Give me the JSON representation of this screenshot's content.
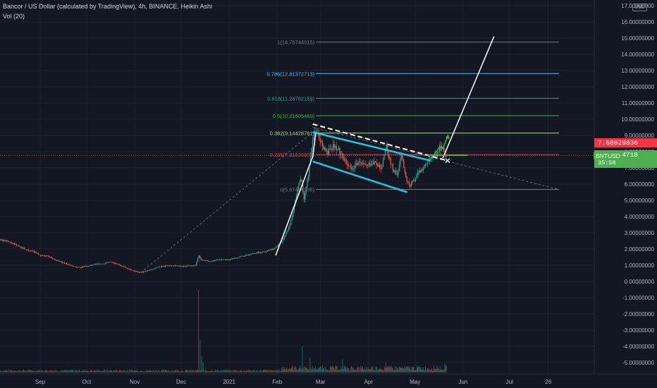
{
  "header": {
    "title": "Bancor / US Dollar (calculated by TradingView), 4h, BINANCE, Heikin Ashi",
    "indicator": "Vol (20)"
  },
  "axis": {
    "currency": "USD"
  },
  "colors": {
    "background": "#131722",
    "up": "#26a69a",
    "down": "#ef5350",
    "text": "#b2b5be",
    "price_line": "#ef5350",
    "symbol_tag": "#4caf50",
    "prev_close_tag": "#f23645"
  },
  "price_tags": {
    "prev_close": "7.88828836",
    "symbol": "BNTUSD",
    "last": "7.77294718",
    "countdown": "35:58"
  },
  "chart_data": {
    "type": "candlestick",
    "symbol": "BNTUSD",
    "timeframe": "4h",
    "chart_style": "Heikin Ashi",
    "y_unit": "USD",
    "ylim": [
      -5.7,
      17.3
    ],
    "yticks": [
      "17.00000000",
      "16.00000000",
      "15.00000000",
      "14.00000000",
      "13.00000000",
      "12.00000000",
      "11.00000000",
      "10.00000000",
      "9.00000000",
      "8.00000000",
      "7.00000000",
      "6.00000000",
      "5.00000000",
      "4.00000000",
      "3.00000000",
      "2.00000000",
      "1.00000000",
      "0.00000000",
      "-1.00000000",
      "-2.00000000",
      "-3.00000000",
      "-4.00000000",
      "-5.00000000"
    ],
    "ytick_values": [
      17,
      16,
      15,
      14,
      13,
      12,
      11,
      10,
      9,
      8,
      7,
      6,
      5,
      4,
      3,
      2,
      1,
      0,
      -1,
      -2,
      -3,
      -4,
      -5
    ],
    "xticks": [
      {
        "label": "Sep",
        "day": 10
      },
      {
        "label": "Oct",
        "day": 40
      },
      {
        "label": "Nov",
        "day": 71
      },
      {
        "label": "Dec",
        "day": 101
      },
      {
        "label": "2021",
        "day": 132
      },
      {
        "label": "Feb",
        "day": 163
      },
      {
        "label": "Mar",
        "day": 191
      },
      {
        "label": "Apr",
        "day": 222
      },
      {
        "label": "May",
        "day": 252
      },
      {
        "label": "Jun",
        "day": 283
      },
      {
        "label": "Jul",
        "day": 313
      },
      {
        "label": "26",
        "day": 338
      }
    ],
    "price_path": [
      {
        "day": -16,
        "price": 2.6
      },
      {
        "day": -10,
        "price": 2.4
      },
      {
        "day": -5,
        "price": 2.2
      },
      {
        "day": 0,
        "price": 2.0
      },
      {
        "day": 5,
        "price": 1.85
      },
      {
        "day": 10,
        "price": 1.6
      },
      {
        "day": 15,
        "price": 1.55
      },
      {
        "day": 20,
        "price": 1.3
      },
      {
        "day": 25,
        "price": 1.15
      },
      {
        "day": 30,
        "price": 0.95
      },
      {
        "day": 35,
        "price": 0.85
      },
      {
        "day": 40,
        "price": 0.95
      },
      {
        "day": 45,
        "price": 1.05
      },
      {
        "day": 50,
        "price": 1.1
      },
      {
        "day": 55,
        "price": 1.2
      },
      {
        "day": 60,
        "price": 1.05
      },
      {
        "day": 65,
        "price": 0.85
      },
      {
        "day": 70,
        "price": 0.65
      },
      {
        "day": 75,
        "price": 0.55
      },
      {
        "day": 80,
        "price": 0.7
      },
      {
        "day": 85,
        "price": 0.85
      },
      {
        "day": 90,
        "price": 0.95
      },
      {
        "day": 95,
        "price": 1.0
      },
      {
        "day": 100,
        "price": 0.95
      },
      {
        "day": 105,
        "price": 0.95
      },
      {
        "day": 110,
        "price": 1.0
      },
      {
        "day": 112,
        "price": 1.6
      },
      {
        "day": 114,
        "price": 1.3
      },
      {
        "day": 120,
        "price": 1.25
      },
      {
        "day": 126,
        "price": 1.35
      },
      {
        "day": 132,
        "price": 1.35
      },
      {
        "day": 140,
        "price": 1.55
      },
      {
        "day": 148,
        "price": 1.75
      },
      {
        "day": 155,
        "price": 1.85
      },
      {
        "day": 160,
        "price": 2.0
      },
      {
        "day": 165,
        "price": 2.4
      },
      {
        "day": 170,
        "price": 3.2
      },
      {
        "day": 173,
        "price": 4.3
      },
      {
        "day": 176,
        "price": 5.8
      },
      {
        "day": 178,
        "price": 6.4
      },
      {
        "day": 180,
        "price": 5.1
      },
      {
        "day": 183,
        "price": 6.6
      },
      {
        "day": 186,
        "price": 9.0
      },
      {
        "day": 188,
        "price": 9.2
      },
      {
        "day": 191,
        "price": 8.5
      },
      {
        "day": 195,
        "price": 7.9
      },
      {
        "day": 200,
        "price": 8.4
      },
      {
        "day": 205,
        "price": 7.7
      },
      {
        "day": 210,
        "price": 7.0
      },
      {
        "day": 215,
        "price": 7.3
      },
      {
        "day": 220,
        "price": 7.1
      },
      {
        "day": 225,
        "price": 7.4
      },
      {
        "day": 230,
        "price": 6.9
      },
      {
        "day": 233,
        "price": 8.4
      },
      {
        "day": 236,
        "price": 7.2
      },
      {
        "day": 240,
        "price": 6.5
      },
      {
        "day": 243,
        "price": 7.8
      },
      {
        "day": 246,
        "price": 6.3
      },
      {
        "day": 248,
        "price": 5.9
      },
      {
        "day": 251,
        "price": 6.2
      },
      {
        "day": 254,
        "price": 6.7
      },
      {
        "day": 258,
        "price": 7.1
      },
      {
        "day": 262,
        "price": 7.5
      },
      {
        "day": 266,
        "price": 7.9
      },
      {
        "day": 268,
        "price": 8.3
      },
      {
        "day": 270,
        "price": 8.1
      },
      {
        "day": 272,
        "price": 7.77
      }
    ],
    "volume_spikes": [
      {
        "day": 112,
        "volume": 5.1
      },
      {
        "day": 113,
        "volume": 2.0
      },
      {
        "day": 114,
        "volume": 1.0
      },
      {
        "day": 115,
        "volume": 0.6
      },
      {
        "day": 179,
        "volume": 1.6
      },
      {
        "day": 184,
        "volume": 0.9
      },
      {
        "day": 205,
        "volume": 0.8
      },
      {
        "day": 233,
        "volume": 0.6
      },
      {
        "day": 266,
        "volume": 0.4
      },
      {
        "day": 271,
        "volume": 0.5
      }
    ],
    "fibonacci": {
      "day_start": 188,
      "day_end": 345,
      "levels": [
        {
          "ratio": "1",
          "price": 14.75744015,
          "label": "1(14.75744015)",
          "color": "#787b86"
        },
        {
          "ratio": "0.786",
          "price": 12.81372713,
          "label": "0.786(12.81372713)",
          "color": "#64b5f6"
        },
        {
          "ratio": "0.618",
          "price": 11.28782159,
          "label": "0.618(11.28782159)",
          "color": "#26a69a"
        },
        {
          "ratio": "0.5",
          "price": 10.2160546,
          "label": "0.5(10.21605460)",
          "color": "#4caf50"
        },
        {
          "ratio": "0.382",
          "price": 9.14428761,
          "label": "0.382(9.14428761)",
          "color": "#a5d6a7"
        },
        {
          "ratio": "0.236",
          "price": 7.81820903,
          "label": "0.236(7.81820903)",
          "color": "#f23645"
        },
        {
          "ratio": "0",
          "price": 5.67446906,
          "label": "0(5.67446906)",
          "color": "#787b86"
        }
      ]
    },
    "drawings": [
      {
        "kind": "dashed",
        "color": "#787b86",
        "points": [
          [
            75,
            0.55
          ],
          [
            186,
            9.2
          ]
        ]
      },
      {
        "kind": "dashed",
        "color": "#787b86",
        "points": [
          [
            186,
            9.5
          ],
          [
            345,
            5.67
          ]
        ]
      },
      {
        "kind": "solid",
        "color": "#ffffff",
        "points": [
          [
            162,
            1.6
          ],
          [
            186,
            7.7
          ]
        ]
      },
      {
        "kind": "solid",
        "color": "#ffffff",
        "points": [
          [
            186,
            7.7
          ],
          [
            188,
            9.2
          ]
        ]
      },
      {
        "kind": "dashed_thick",
        "color": "#ffffff",
        "points": [
          [
            186,
            9.7
          ],
          [
            273,
            7.45
          ]
        ]
      },
      {
        "kind": "channel",
        "color": "#26c6da",
        "points": [
          [
            186,
            9.2
          ],
          [
            262,
            7.45
          ]
        ]
      },
      {
        "kind": "channel",
        "color": "#26c6da",
        "points": [
          [
            186,
            7.4
          ],
          [
            247,
            5.5
          ]
        ]
      },
      {
        "kind": "solid",
        "color": "#ffffff",
        "points": [
          [
            270,
            7.6
          ],
          [
            303,
            15.1
          ]
        ]
      },
      {
        "kind": "arrow",
        "color": "#4caf50",
        "points": [
          [
            262,
            7.6
          ],
          [
            265,
            7.9
          ],
          [
            268,
            8.3
          ],
          [
            270,
            8.2
          ],
          [
            273,
            8.9
          ]
        ]
      }
    ],
    "last_price": 7.77294718,
    "prev_close": 7.88828836
  }
}
